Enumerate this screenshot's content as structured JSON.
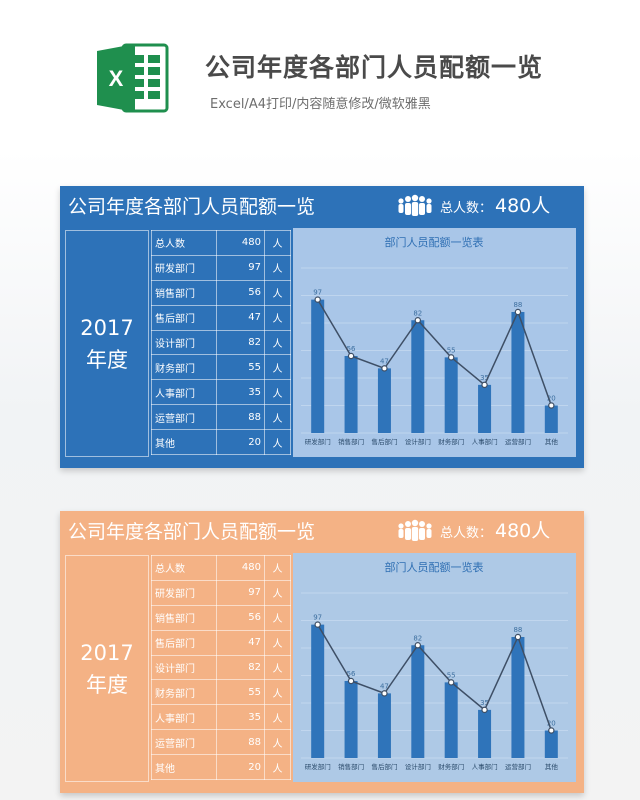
{
  "header": {
    "title": "公司年度各部门人员配额一览",
    "subtitle": "Excel/A4打印/内容随意修改/微软雅黑",
    "logo_letter": "X",
    "logo_icon": "excel-icon"
  },
  "colors": {
    "blue_card": "#2d72b8",
    "orange_card": "#f4b285",
    "bar": "#2f74ba",
    "excel_green": "#1f8f4e"
  },
  "cards": [
    {
      "theme": "blue",
      "title": "公司年度各部门人员配额一览",
      "total_label": "总人数：",
      "total_value": "480人",
      "year": "2017",
      "year_label": "年度",
      "rows": [
        {
          "name": "总人数",
          "count": "480",
          "unit": "人"
        },
        {
          "name": "研发部门",
          "count": "97",
          "unit": "人"
        },
        {
          "name": "销售部门",
          "count": "56",
          "unit": "人"
        },
        {
          "name": "售后部门",
          "count": "47",
          "unit": "人"
        },
        {
          "name": "设计部门",
          "count": "82",
          "unit": "人"
        },
        {
          "name": "财务部门",
          "count": "55",
          "unit": "人"
        },
        {
          "name": "人事部门",
          "count": "35",
          "unit": "人"
        },
        {
          "name": "运营部门",
          "count": "88",
          "unit": "人"
        },
        {
          "name": "其他",
          "count": "20",
          "unit": "人"
        }
      ]
    },
    {
      "theme": "orange",
      "title": "公司年度各部门人员配额一览",
      "total_label": "总人数：",
      "total_value": "480人",
      "year": "2017",
      "year_label": "年度",
      "rows": [
        {
          "name": "总人数",
          "count": "480",
          "unit": "人"
        },
        {
          "name": "研发部门",
          "count": "97",
          "unit": "人"
        },
        {
          "name": "销售部门",
          "count": "56",
          "unit": "人"
        },
        {
          "name": "售后部门",
          "count": "47",
          "unit": "人"
        },
        {
          "name": "设计部门",
          "count": "82",
          "unit": "人"
        },
        {
          "name": "财务部门",
          "count": "55",
          "unit": "人"
        },
        {
          "name": "人事部门",
          "count": "35",
          "unit": "人"
        },
        {
          "name": "运营部门",
          "count": "88",
          "unit": "人"
        },
        {
          "name": "其他",
          "count": "20",
          "unit": "人"
        }
      ]
    }
  ],
  "chart_data": [
    {
      "type": "bar",
      "title": "部门人员配额一览表",
      "categories": [
        "研发部门",
        "销售部门",
        "售后部门",
        "设计部门",
        "财务部门",
        "人事部门",
        "运营部门",
        "其他"
      ],
      "values": [
        97,
        56,
        47,
        82,
        55,
        35,
        88,
        20
      ],
      "ylim": [
        0,
        120
      ],
      "grid": true,
      "line_overlay": true
    },
    {
      "type": "bar",
      "title": "部门人员配额一览表",
      "categories": [
        "研发部门",
        "销售部门",
        "售后部门",
        "设计部门",
        "财务部门",
        "人事部门",
        "运营部门",
        "其他"
      ],
      "values": [
        97,
        56,
        47,
        82,
        55,
        35,
        88,
        20
      ],
      "ylim": [
        0,
        120
      ],
      "grid": true,
      "line_overlay": true
    }
  ]
}
